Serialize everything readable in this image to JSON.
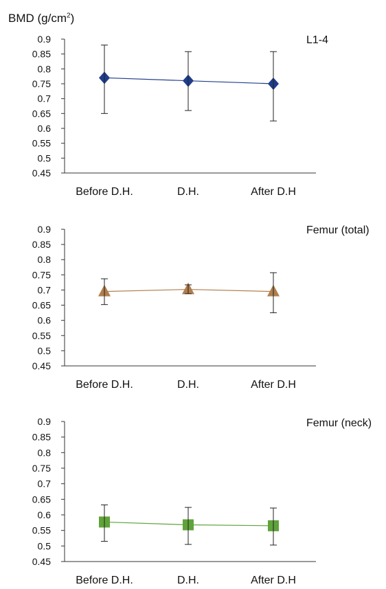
{
  "figure": {
    "ylabel_main": "BMD (g/cm",
    "ylabel_sup": "2",
    "ylabel_close": ")"
  },
  "chart_data": [
    {
      "type": "line",
      "title": "L1-4",
      "categories": [
        "Before D.H.",
        "D.H.",
        "After D.H"
      ],
      "series": [
        {
          "values": [
            0.77,
            0.76,
            0.75
          ],
          "error_low": [
            0.65,
            0.66,
            0.625
          ],
          "error_high": [
            0.88,
            0.858,
            0.858
          ]
        }
      ],
      "ylim": [
        0.45,
        0.9
      ],
      "yticks": [
        "0.9",
        "0.85",
        "0.8",
        "0.75",
        "0.7",
        "0.65",
        "0.6",
        "0.55",
        "0.5",
        "0.45"
      ],
      "marker": "diamond",
      "color": "#1f3d8c"
    },
    {
      "type": "line",
      "title": "Femur (total)",
      "categories": [
        "Before D.H.",
        "D.H.",
        "After D.H"
      ],
      "series": [
        {
          "values": [
            0.695,
            0.702,
            0.695
          ],
          "error_low": [
            0.652,
            0.688,
            0.625
          ],
          "error_high": [
            0.737,
            0.717,
            0.757
          ]
        }
      ],
      "ylim": [
        0.45,
        0.9
      ],
      "yticks": [
        "0.9",
        "0.85",
        "0.8",
        "0.75",
        "0.7",
        "0.65",
        "0.6",
        "0.55",
        "0.5",
        "0.45"
      ],
      "marker": "triangle",
      "color": "#b07e4e"
    },
    {
      "type": "line",
      "title": "Femur (neck)",
      "categories": [
        "Before D.H.",
        "D.H.",
        "After D.H"
      ],
      "series": [
        {
          "values": [
            0.577,
            0.568,
            0.565
          ],
          "error_low": [
            0.515,
            0.505,
            0.503
          ],
          "error_high": [
            0.632,
            0.624,
            0.622
          ]
        }
      ],
      "ylim": [
        0.45,
        0.9
      ],
      "yticks": [
        "0.9",
        "0.85",
        "0.8",
        "0.75",
        "0.7",
        "0.65",
        "0.6",
        "0.55",
        "0.5",
        "0.45"
      ],
      "marker": "square",
      "color": "#5fa33a"
    }
  ]
}
